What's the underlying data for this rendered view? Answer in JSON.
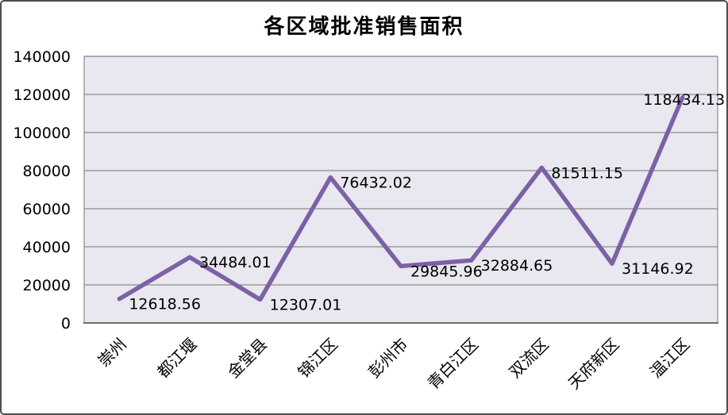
{
  "chart_data": {
    "type": "line",
    "title": "各区域批准销售面积",
    "categories": [
      "崇州",
      "都江堰",
      "金堂县",
      "锦江区",
      "彭州市",
      "青白江区",
      "双流区",
      "天府新区",
      "温江区"
    ],
    "values": [
      12618.56,
      34484.01,
      12307.01,
      76432.02,
      29845.96,
      32884.65,
      81511.15,
      31146.92,
      118434.13
    ],
    "data_labels": [
      "12618.56",
      "34484.01",
      "12307.01",
      "76432.02",
      "29845.96",
      "32884.65",
      "81511.15",
      "31146.92",
      "118434.13"
    ],
    "xlabel": "",
    "ylabel": "",
    "ylim": [
      0,
      140000
    ],
    "ytick_interval": 20000,
    "yticks": [
      "0",
      "20000",
      "40000",
      "60000",
      "80000",
      "100000",
      "120000",
      "140000"
    ],
    "grid": true,
    "legend": "none",
    "x_label_rotation": -45,
    "colors": {
      "line": "#7C61A7",
      "plot_background": "#E9E7EF",
      "gridline": "#8C8C8C",
      "axis_line": "#6E6E6E",
      "text": "#000000",
      "chart_background": "#FFFFFF",
      "chart_border": "#4D4D4D"
    }
  }
}
